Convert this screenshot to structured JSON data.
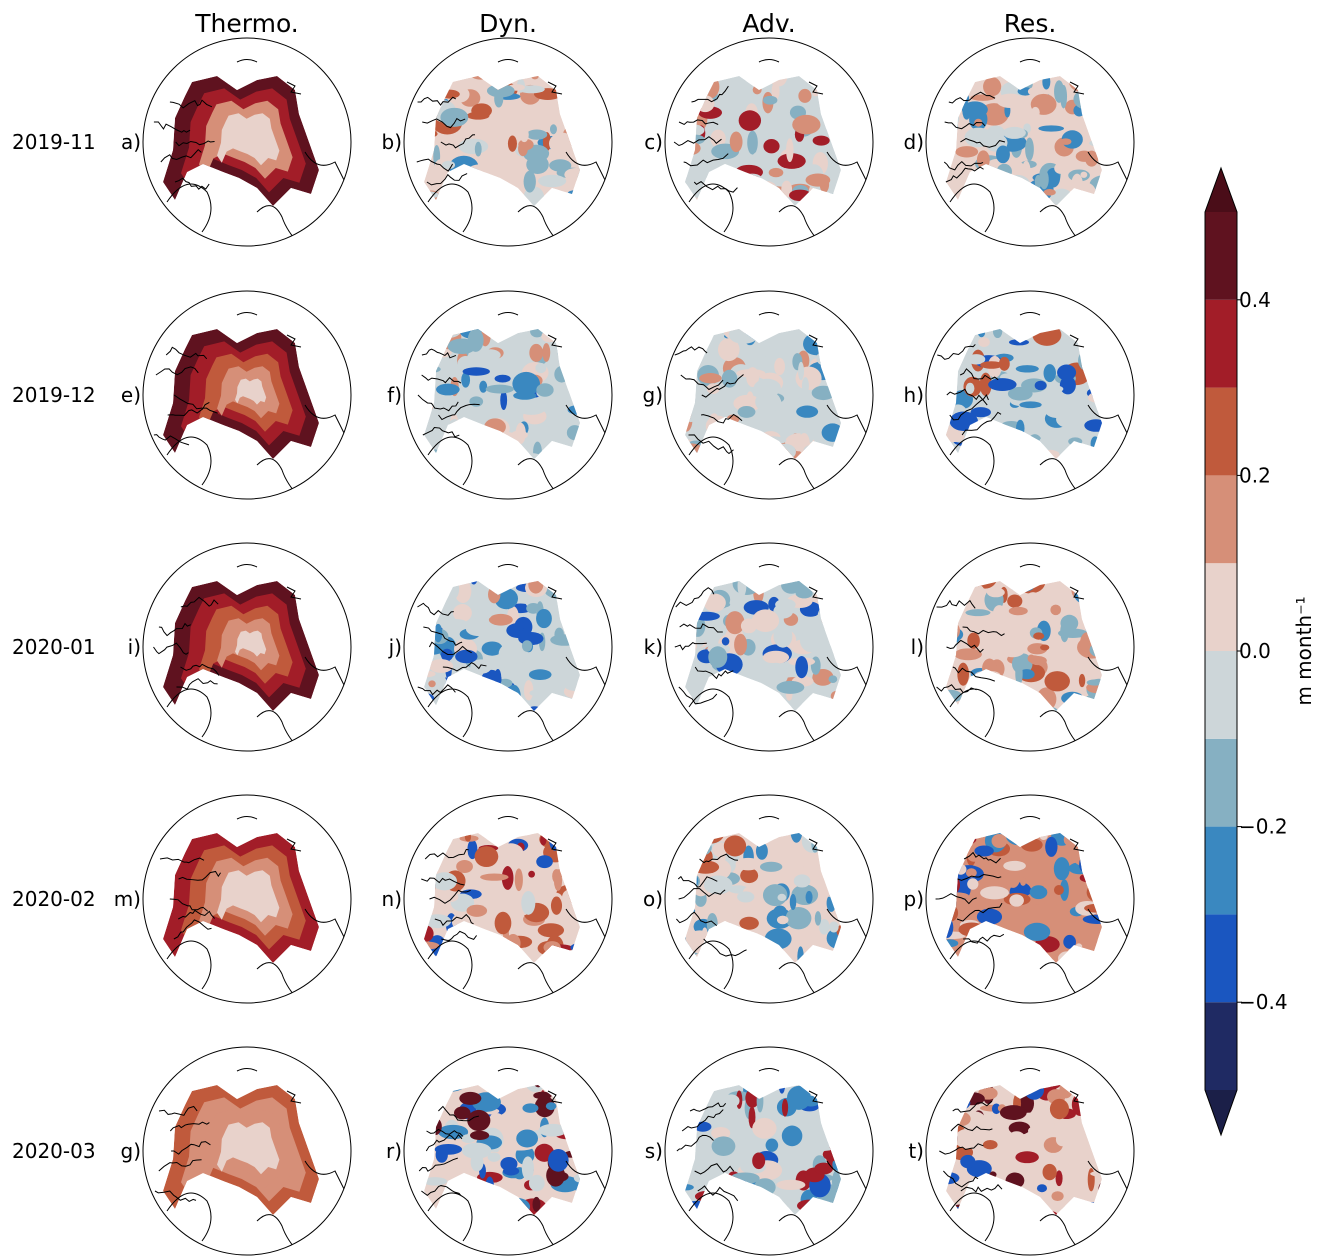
{
  "columns": [
    "Thermo.",
    "Dyn.",
    "Adv.",
    "Res."
  ],
  "rows": [
    "2019-11",
    "2019-12",
    "2020-01",
    "2020-02",
    "2020-03"
  ],
  "panel_letters": [
    [
      "a)",
      "b)",
      "c)",
      "d)"
    ],
    [
      "e)",
      "f)",
      "g)",
      "h)"
    ],
    [
      "i)",
      "j)",
      "k)",
      "l)"
    ],
    [
      "m)",
      "n)",
      "o)",
      "p)"
    ],
    [
      "g)",
      "r)",
      "s)",
      "t)"
    ]
  ],
  "colorbar": {
    "label": "m month⁻¹",
    "levels": [
      -0.5,
      -0.4,
      -0.3,
      -0.2,
      -0.1,
      0,
      0.1,
      0.2,
      0.3,
      0.4,
      0.5
    ],
    "colors": [
      "#1f2a63",
      "#1a56c0",
      "#3a88c0",
      "#86b0c2",
      "#cdd6d9",
      "#e8d2cb",
      "#d68f78",
      "#c05a3c",
      "#a21d28",
      "#5f121f"
    ],
    "extend_colors": {
      "min": "#1b1f48",
      "max": "#4a0d18"
    },
    "ticks": [
      {
        "value": -0.4,
        "label": "−0.4"
      },
      {
        "value": -0.2,
        "label": "−0.2"
      },
      {
        "value": 0,
        "label": "0.0"
      },
      0.2,
      0.4
    ]
  }
}
